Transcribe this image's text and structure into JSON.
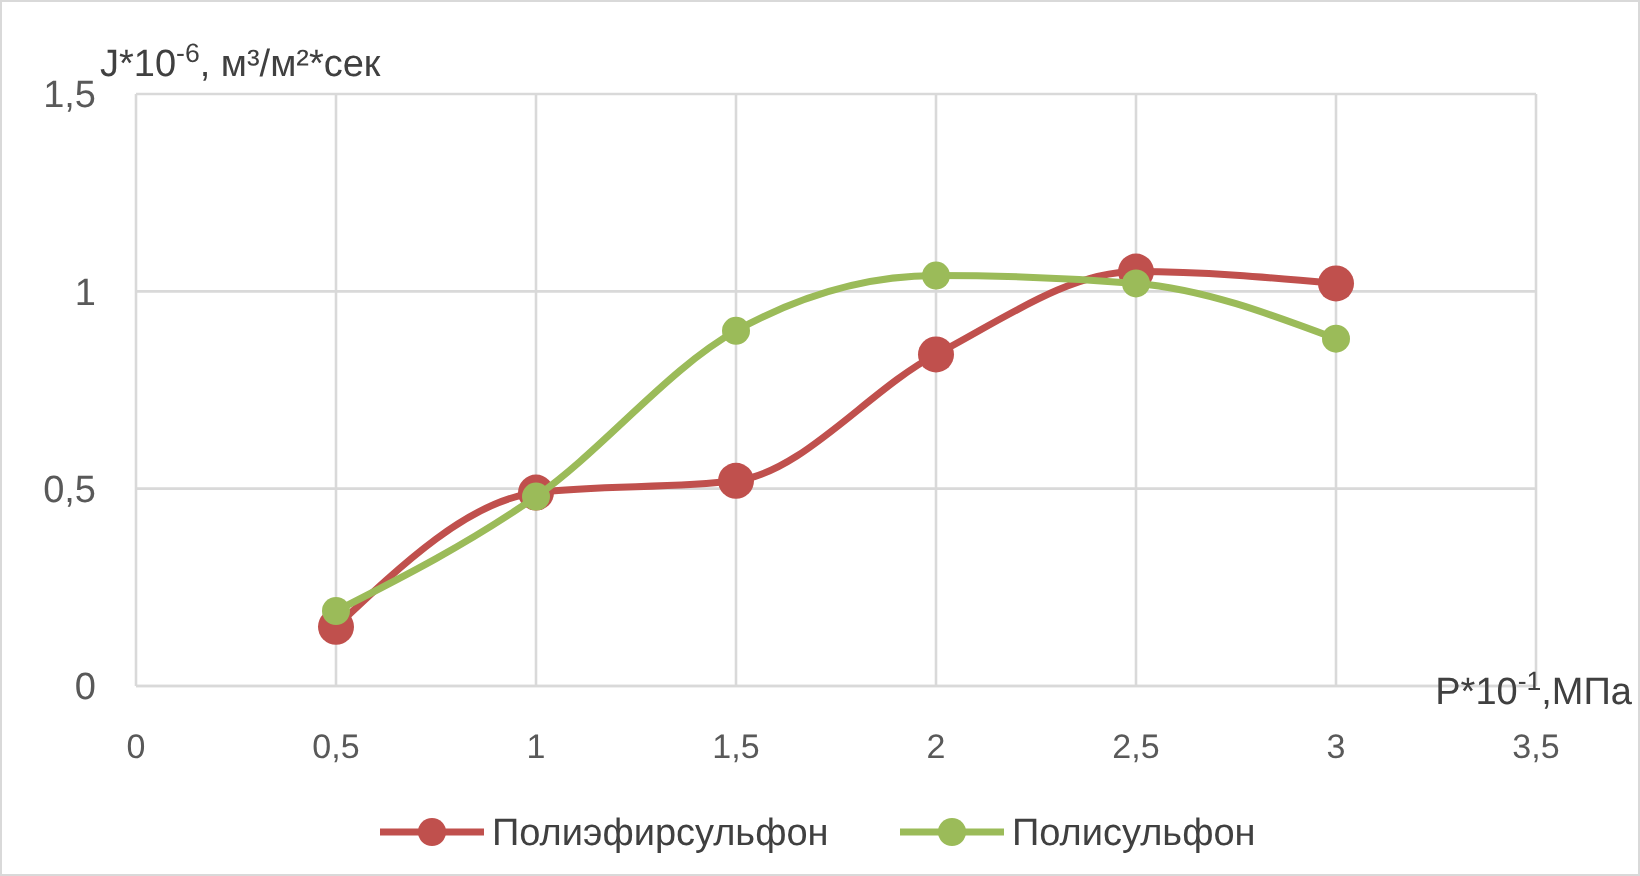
{
  "chart_data": {
    "type": "line",
    "xlabel": "P*10$^{-1}$,МПа",
    "ylabel": "J*10$^{-6}$, м³/м²*сек",
    "x": [
      0.5,
      1,
      1.5,
      2,
      2.5,
      3
    ],
    "series": [
      {
        "name": "Полиэфирсульфон",
        "color": "#c0504d",
        "values": [
          0.15,
          0.49,
          0.52,
          0.84,
          1.05,
          1.02
        ]
      },
      {
        "name": "Полисульфон",
        "color": "#9bbb59",
        "values": [
          0.19,
          0.48,
          0.9,
          1.04,
          1.02,
          0.88
        ]
      }
    ],
    "xlim": [
      0,
      3.5
    ],
    "xticks": [
      {
        "value": 0,
        "label": "0"
      },
      {
        "value": 0.5,
        "label": "0,5"
      },
      {
        "value": 1,
        "label": "1"
      },
      {
        "value": 1.5,
        "label": "1,5"
      },
      {
        "value": 2,
        "label": "2"
      },
      {
        "value": 2.5,
        "label": "2,5"
      },
      {
        "value": 3,
        "label": "3"
      },
      {
        "value": 3.5,
        "label": "3,5"
      }
    ],
    "ylim": [
      0,
      1.5
    ],
    "yticks": [
      {
        "value": 0,
        "label": "0"
      },
      {
        "value": 0.5,
        "label": "0,5"
      },
      {
        "value": 1,
        "label": "1"
      },
      {
        "value": 1.5,
        "label": "1,5"
      }
    ],
    "grid": true,
    "legend": "bottom",
    "marker": "circle",
    "line_style": "solid"
  }
}
